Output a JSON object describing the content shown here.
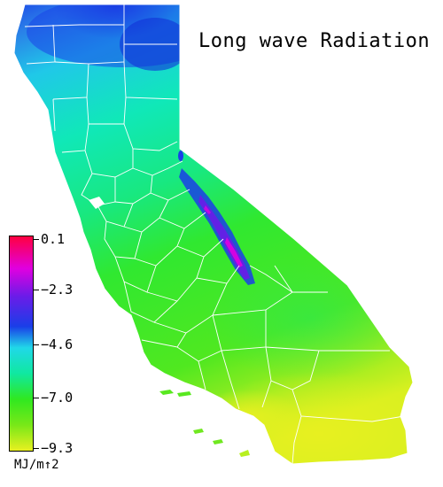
{
  "map": {
    "title": "Long wave Radiation",
    "region": "California",
    "colors": {
      "high_red": "#ff0040",
      "magenta": "#e000e0",
      "purple": "#6a1ce8",
      "blue": "#1a3ee8",
      "cyan": "#20d8e8",
      "aqua_green": "#10e8a0",
      "green": "#30e820",
      "light_green": "#78e818",
      "yellow": "#e8f020"
    }
  },
  "legend": {
    "ticks": [
      "0.1",
      "−2.3",
      "−4.6",
      "−7.0",
      "−9.3"
    ],
    "units": "MJ/m↑2"
  }
}
